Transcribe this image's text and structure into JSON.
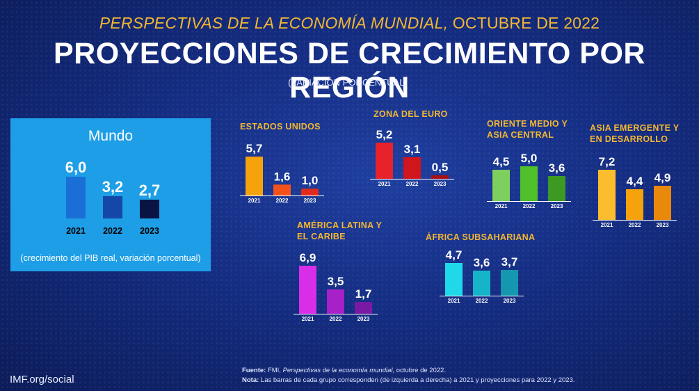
{
  "header": {
    "subtitle_italic": "PERSPECTIVAS DE LA ECONOMÍA MUNDIAL,",
    "subtitle_rest": " OCTUBRE DE 2022",
    "title": "PROYECCIONES DE CRECIMIENTO POR REGIÓN",
    "units": "(VARIACIÓN PORCENTUAL)"
  },
  "world_panel": {
    "title": "Mundo",
    "footnote": "(crecimiento del PIB real, variación porcentual)"
  },
  "footer": {
    "brand": "IMF.org/social",
    "source_label": "Fuente:",
    "source_pre": "FMI,",
    "source_title": "Perspectivas de la economía mundial",
    "source_post": ", octubre de 2022.",
    "note_label": "Nota:",
    "note_text": "Las barras de cada grupo corresponden (de izquierda a derecha) a 2021 y proyecciones para 2022 y 2023."
  },
  "chart_data": [
    {
      "type": "bar",
      "title": "Mundo",
      "categories": [
        "2021",
        "2022",
        "2023"
      ],
      "values": [
        6.0,
        3.2,
        2.7
      ],
      "labels": [
        "6,0",
        "3,2",
        "2,7"
      ],
      "colors": [
        "#1a6fd6",
        "#1448a8",
        "#0a1442"
      ]
    },
    {
      "type": "bar",
      "title": "ESTADOS UNIDOS",
      "categories": [
        "2021",
        "2022",
        "2023"
      ],
      "values": [
        5.7,
        1.6,
        1.0
      ],
      "labels": [
        "5,7",
        "1,6",
        "1,0"
      ],
      "colors": [
        "#f5a20c",
        "#f5511a",
        "#e22b1c"
      ]
    },
    {
      "type": "bar",
      "title": "ZONA DEL EURO",
      "categories": [
        "2021",
        "2022",
        "2023"
      ],
      "values": [
        5.2,
        3.1,
        0.5
      ],
      "labels": [
        "5,2",
        "3,1",
        "0,5"
      ],
      "colors": [
        "#e8222a",
        "#d0161c",
        "#a80f14"
      ]
    },
    {
      "type": "bar",
      "title": "ORIENTE MEDIO Y ASIA CENTRAL",
      "categories": [
        "2021",
        "2022",
        "2023"
      ],
      "values": [
        4.5,
        5.0,
        3.6
      ],
      "labels": [
        "4,5",
        "5,0",
        "3,6"
      ],
      "colors": [
        "#7ed05e",
        "#4fbf2a",
        "#3c9a22"
      ]
    },
    {
      "type": "bar",
      "title": "ASIA EMERGENTE Y EN DESARROLLO",
      "categories": [
        "2021",
        "2022",
        "2023"
      ],
      "values": [
        7.2,
        4.4,
        4.9
      ],
      "labels": [
        "7,2",
        "4,4",
        "4,9"
      ],
      "colors": [
        "#fbbd2e",
        "#f5a20c",
        "#e8890c"
      ]
    },
    {
      "type": "bar",
      "title": "AMÉRICA LATINA Y EL CARIBE",
      "categories": [
        "2021",
        "2022",
        "2023"
      ],
      "values": [
        6.9,
        3.5,
        1.7
      ],
      "labels": [
        "6,9",
        "3,5",
        "1,7"
      ],
      "colors": [
        "#d92ee8",
        "#a820c8",
        "#7a1aa4"
      ]
    },
    {
      "type": "bar",
      "title": "ÁFRICA SUBSAHARIANA",
      "categories": [
        "2021",
        "2022",
        "2023"
      ],
      "values": [
        4.7,
        3.6,
        3.7
      ],
      "labels": [
        "4,7",
        "3,6",
        "3,7"
      ],
      "colors": [
        "#1fd8ea",
        "#16b4c8",
        "#1597b0"
      ]
    }
  ]
}
